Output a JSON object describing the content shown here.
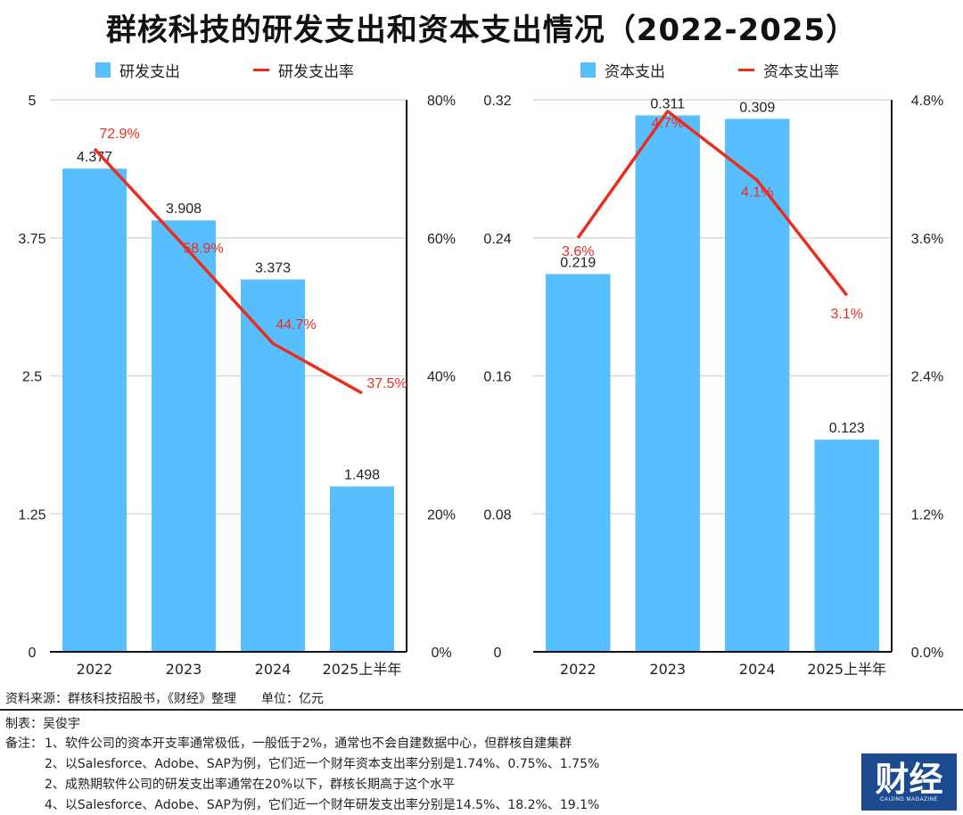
{
  "title": "群核科技的研发支出和资本支出情况（2022-2025）",
  "colors": {
    "bar": "#58bffe",
    "line": "#ea2d1f",
    "grid": "#d9d9d9",
    "axis": "#111111"
  },
  "legend_left": {
    "bar": "研发支出",
    "line": "研发支出率"
  },
  "legend_right": {
    "bar": "资本支出",
    "line": "资本支出率"
  },
  "chart_data": [
    {
      "type": "bar+line",
      "title": "研发支出",
      "categories": [
        "2022",
        "2023",
        "2024",
        "2025上半年"
      ],
      "series": [
        {
          "name": "研发支出",
          "type": "bar",
          "axis": "left",
          "values": [
            4.377,
            3.908,
            3.373,
            1.498
          ],
          "labels": [
            "4.377",
            "3.908",
            "3.373",
            "1.498"
          ]
        },
        {
          "name": "研发支出率",
          "type": "line",
          "axis": "right",
          "values": [
            72.9,
            58.9,
            44.7,
            37.5
          ],
          "labels": [
            "72.9%",
            "58.9%",
            "44.7%",
            "37.5%"
          ]
        }
      ],
      "y_left": {
        "range": [
          0,
          5
        ],
        "ticks": [
          "0",
          "1.25",
          "2.5",
          "3.75",
          "5"
        ]
      },
      "y_right": {
        "range": [
          0,
          80
        ],
        "ticks": [
          "0%",
          "20%",
          "40%",
          "60%",
          "80%"
        ]
      },
      "grid": true,
      "legend": "top"
    },
    {
      "type": "bar+line",
      "title": "资本支出",
      "categories": [
        "2022",
        "2023",
        "2024",
        "2025上半年"
      ],
      "series": [
        {
          "name": "资本支出",
          "type": "bar",
          "axis": "left",
          "values": [
            0.219,
            0.311,
            0.309,
            0.123
          ],
          "labels": [
            "0.219",
            "0.311",
            "0.309",
            "0.123"
          ]
        },
        {
          "name": "资本支出率",
          "type": "line",
          "axis": "right",
          "values": [
            3.6,
            4.7,
            4.1,
            3.1
          ],
          "labels": [
            "3.6%",
            "4.7%",
            "4.1%",
            "3.1%"
          ]
        }
      ],
      "y_left": {
        "range": [
          0,
          0.32
        ],
        "ticks": [
          "0",
          "0.08",
          "0.16",
          "0.24",
          "0.32"
        ]
      },
      "y_right": {
        "range": [
          0,
          4.8
        ],
        "ticks": [
          "0.0%",
          "1.2%",
          "2.4%",
          "3.6%",
          "4.8%"
        ]
      },
      "grid": true,
      "legend": "top"
    }
  ],
  "footer": {
    "source": "资料来源：群核科技招股书，《财经》整理　　单位：亿元",
    "author": "制表：吴俊宇",
    "notes_label": "备注：",
    "notes": [
      "1、软件公司的资本开支率通常极低，一般低于2%，通常也不会自建数据中心，但群核自建集群",
      "2、以Salesforce、Adobe、SAP为例，它们近一个财年资本支出率分别是1.74%、0.75%、1.75%",
      "2、成熟期软件公司的研发支出率通常在20%以下，群核长期高于这个水平",
      "4、以Salesforce、Adobe、SAP为例，它们近一个财年研发支出率分别是14.5%、18.2%、19.1%"
    ]
  },
  "logo": {
    "text": "财经",
    "subtext": "CAIJING MAGAZINE"
  }
}
